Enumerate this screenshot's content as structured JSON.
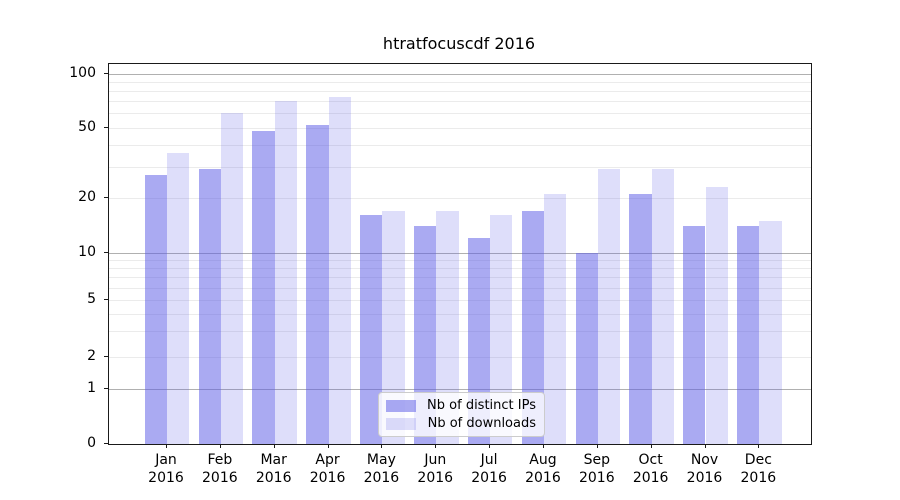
{
  "title": "htratfocuscdf 2016",
  "chart_data": {
    "type": "bar",
    "title": "htratfocuscdf 2016",
    "categories": [
      {
        "month": "Jan",
        "year": "2016"
      },
      {
        "month": "Feb",
        "year": "2016"
      },
      {
        "month": "Mar",
        "year": "2016"
      },
      {
        "month": "Apr",
        "year": "2016"
      },
      {
        "month": "May",
        "year": "2016"
      },
      {
        "month": "Jun",
        "year": "2016"
      },
      {
        "month": "Jul",
        "year": "2016"
      },
      {
        "month": "Aug",
        "year": "2016"
      },
      {
        "month": "Sep",
        "year": "2016"
      },
      {
        "month": "Oct",
        "year": "2016"
      },
      {
        "month": "Nov",
        "year": "2016"
      },
      {
        "month": "Dec",
        "year": "2016"
      }
    ],
    "series": [
      {
        "name": "Nb of distinct IPs",
        "color": "rgba(92,92,230,0.52)",
        "values": [
          27,
          29,
          48,
          52,
          16,
          14,
          12,
          17,
          10,
          21,
          14,
          14
        ]
      },
      {
        "name": "Nb of downloads",
        "color": "rgba(92,92,230,0.20)",
        "values": [
          36,
          60,
          70,
          74,
          17,
          17,
          16,
          21,
          29,
          29,
          23,
          15
        ]
      }
    ],
    "y_axis": {
      "scale": "symlog",
      "tick_values": [
        100,
        50,
        20,
        10,
        5,
        2,
        1,
        0
      ],
      "tick_labels": [
        "100",
        "50",
        "20",
        "10",
        "5",
        "2",
        "1",
        "0"
      ],
      "major_gridlines": [
        1,
        10,
        100
      ],
      "minor_gridlines": [
        2,
        3,
        4,
        5,
        6,
        7,
        8,
        9,
        20,
        30,
        40,
        50,
        60,
        70,
        80,
        90
      ],
      "ylim": [
        0,
        110
      ]
    },
    "legend_position": "lower center",
    "grid": true
  }
}
